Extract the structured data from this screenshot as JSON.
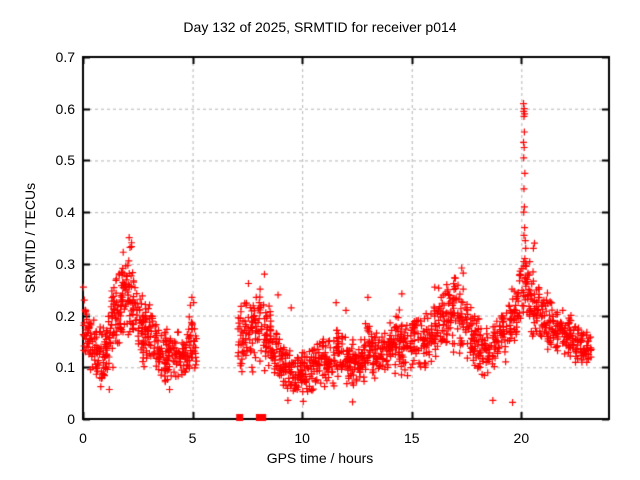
{
  "chart_data": {
    "type": "scatter",
    "title": "Day 132 of 2025, SRMTID for receiver p014",
    "xlabel": "GPS time / hours",
    "ylabel": "SRMTID / TECUs",
    "xlim": [
      0,
      24
    ],
    "ylim": [
      0,
      0.7
    ],
    "xticks": [
      0,
      5,
      10,
      15,
      20
    ],
    "yticks": [
      0,
      0.1,
      0.2,
      0.3,
      0.4,
      0.5,
      0.6,
      0.7
    ],
    "grid": true,
    "grid_color": "#b4b4b4",
    "grid_style": "dashed",
    "border_color": "#000000",
    "marker": "plus",
    "marker_color": "#ff0000",
    "marker_size": 7,
    "legend": "none",
    "series_name": "SRMTID",
    "data_gaps": [
      [
        5.2,
        7.05
      ],
      [
        23.2,
        24
      ]
    ],
    "envelope_segments": [
      [
        0.0,
        0.3,
        0.1,
        0.26,
        0.09,
        0.22,
        30
      ],
      [
        0.3,
        0.8,
        0.08,
        0.21,
        0.07,
        0.18,
        45
      ],
      [
        0.8,
        1.3,
        0.06,
        0.18,
        0.08,
        0.24,
        50
      ],
      [
        1.3,
        1.7,
        0.09,
        0.28,
        0.13,
        0.35,
        45
      ],
      [
        1.7,
        2.0,
        0.13,
        0.35,
        0.16,
        0.39,
        40
      ],
      [
        2.0,
        2.4,
        0.15,
        0.39,
        0.14,
        0.34,
        45
      ],
      [
        2.4,
        2.8,
        0.12,
        0.3,
        0.1,
        0.24,
        40
      ],
      [
        2.8,
        3.3,
        0.1,
        0.26,
        0.09,
        0.21,
        45
      ],
      [
        3.3,
        3.8,
        0.08,
        0.2,
        0.06,
        0.17,
        45
      ],
      [
        3.8,
        4.3,
        0.07,
        0.19,
        0.08,
        0.18,
        40
      ],
      [
        4.3,
        4.8,
        0.07,
        0.17,
        0.08,
        0.17,
        40
      ],
      [
        4.8,
        5.2,
        0.08,
        0.23,
        0.08,
        0.16,
        35
      ],
      [
        7.05,
        7.5,
        0.07,
        0.22,
        0.08,
        0.25,
        40
      ],
      [
        7.5,
        8.1,
        0.08,
        0.25,
        0.09,
        0.27,
        50
      ],
      [
        8.1,
        8.6,
        0.08,
        0.27,
        0.07,
        0.22,
        45
      ],
      [
        8.6,
        9.2,
        0.06,
        0.2,
        0.05,
        0.16,
        50
      ],
      [
        9.2,
        9.8,
        0.04,
        0.15,
        0.04,
        0.13,
        50
      ],
      [
        9.8,
        10.4,
        0.04,
        0.13,
        0.05,
        0.15,
        50
      ],
      [
        10.4,
        11.0,
        0.05,
        0.16,
        0.06,
        0.17,
        50
      ],
      [
        11.0,
        11.6,
        0.05,
        0.15,
        0.06,
        0.19,
        50
      ],
      [
        11.6,
        12.1,
        0.06,
        0.2,
        0.06,
        0.17,
        45
      ],
      [
        12.1,
        12.7,
        0.05,
        0.16,
        0.06,
        0.16,
        50
      ],
      [
        12.7,
        13.2,
        0.06,
        0.18,
        0.07,
        0.2,
        45
      ],
      [
        13.2,
        13.8,
        0.07,
        0.17,
        0.07,
        0.18,
        50
      ],
      [
        13.8,
        14.4,
        0.08,
        0.19,
        0.08,
        0.22,
        50
      ],
      [
        14.4,
        15.0,
        0.08,
        0.23,
        0.08,
        0.19,
        50
      ],
      [
        15.0,
        15.6,
        0.08,
        0.2,
        0.09,
        0.21,
        50
      ],
      [
        15.6,
        16.2,
        0.08,
        0.21,
        0.1,
        0.24,
        50
      ],
      [
        16.2,
        16.8,
        0.1,
        0.26,
        0.12,
        0.3,
        50
      ],
      [
        16.8,
        17.4,
        0.12,
        0.3,
        0.12,
        0.28,
        50
      ],
      [
        17.4,
        18.0,
        0.11,
        0.26,
        0.09,
        0.21,
        50
      ],
      [
        18.0,
        18.7,
        0.07,
        0.2,
        0.07,
        0.18,
        55
      ],
      [
        18.7,
        19.3,
        0.08,
        0.2,
        0.11,
        0.23,
        50
      ],
      [
        19.3,
        19.9,
        0.12,
        0.24,
        0.15,
        0.28,
        50
      ],
      [
        19.9,
        20.4,
        0.16,
        0.33,
        0.18,
        0.33,
        45
      ],
      [
        20.4,
        21.0,
        0.16,
        0.3,
        0.14,
        0.26,
        50
      ],
      [
        21.0,
        21.6,
        0.13,
        0.26,
        0.13,
        0.24,
        50
      ],
      [
        21.6,
        22.2,
        0.12,
        0.23,
        0.11,
        0.21,
        50
      ],
      [
        22.2,
        22.8,
        0.1,
        0.21,
        0.1,
        0.19,
        50
      ],
      [
        22.8,
        23.2,
        0.1,
        0.18,
        0.11,
        0.16,
        30
      ]
    ],
    "spike_points": [
      [
        20.1,
        0.61
      ],
      [
        20.13,
        0.6
      ],
      [
        20.11,
        0.595
      ],
      [
        20.15,
        0.59
      ],
      [
        20.12,
        0.585
      ],
      [
        20.14,
        0.555
      ],
      [
        20.1,
        0.535
      ],
      [
        20.13,
        0.525
      ],
      [
        20.11,
        0.505
      ],
      [
        20.16,
        0.475
      ],
      [
        20.12,
        0.445
      ],
      [
        20.14,
        0.41
      ],
      [
        20.11,
        0.4
      ],
      [
        20.15,
        0.37
      ],
      [
        20.12,
        0.355
      ],
      [
        20.18,
        0.345
      ],
      [
        20.2,
        0.33
      ],
      [
        20.16,
        0.31
      ],
      [
        20.22,
        0.295
      ]
    ],
    "outlier_points": [
      [
        0.02,
        0.255
      ],
      [
        0.06,
        0.23
      ],
      [
        1.2,
        0.057
      ],
      [
        3.95,
        0.057
      ],
      [
        4.9,
        0.22
      ],
      [
        4.97,
        0.235
      ],
      [
        5.05,
        0.225
      ],
      [
        7.55,
        0.262
      ],
      [
        8.28,
        0.28
      ],
      [
        8.9,
        0.24
      ],
      [
        9.5,
        0.215
      ],
      [
        11.55,
        0.225
      ],
      [
        12.0,
        0.21
      ],
      [
        13.0,
        0.235
      ],
      [
        14.55,
        0.242
      ],
      [
        16.05,
        0.255
      ],
      [
        17.28,
        0.292
      ],
      [
        17.35,
        0.282
      ],
      [
        9.35,
        0.036
      ],
      [
        10.05,
        0.034
      ],
      [
        12.3,
        0.033
      ],
      [
        18.7,
        0.036
      ],
      [
        19.6,
        0.032
      ],
      [
        20.6,
        0.34
      ],
      [
        20.55,
        0.33
      ]
    ],
    "zero_square_markers": [
      7.15,
      8.05,
      8.2
    ]
  }
}
